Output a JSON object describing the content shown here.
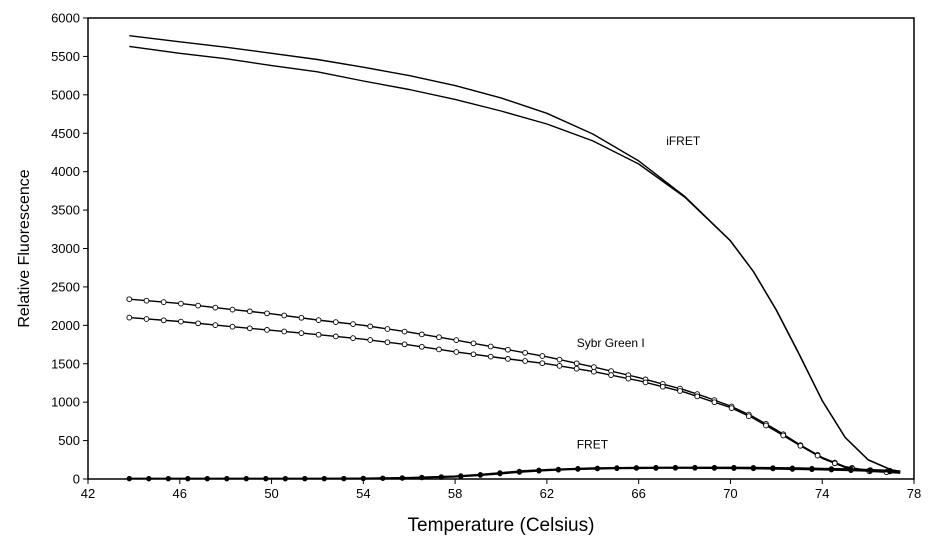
{
  "chart_data": {
    "type": "line",
    "title": "",
    "xlabel": "Temperature (Celsius)",
    "ylabel": "Relative Fluorescence",
    "xlim": [
      42,
      78
    ],
    "ylim": [
      0,
      6000
    ],
    "xticks": [
      42,
      46,
      50,
      54,
      58,
      62,
      66,
      70,
      74,
      78
    ],
    "yticks": [
      0,
      500,
      1000,
      1500,
      2000,
      2500,
      3000,
      3500,
      4000,
      4500,
      5000,
      5500,
      6000
    ],
    "grid": false,
    "legend": "none",
    "annotations": [
      {
        "text": "iFRET",
        "x": 67.2,
        "y": 4350
      },
      {
        "text": "Sybr Green I",
        "x": 63.3,
        "y": 1720
      },
      {
        "text": "FRET",
        "x": 63.3,
        "y": 400
      }
    ],
    "series": [
      {
        "group": "iFRET",
        "marker": "none",
        "x": [
          43.8,
          46,
          48,
          50,
          52,
          54,
          56,
          58,
          60,
          62,
          64,
          66,
          68,
          70,
          71,
          72,
          73,
          74,
          75,
          76,
          77,
          77.4
        ],
        "values": [
          5770,
          5690,
          5620,
          5540,
          5460,
          5360,
          5250,
          5120,
          4960,
          4760,
          4490,
          4140,
          3680,
          3100,
          2700,
          2200,
          1620,
          1020,
          540,
          250,
          120,
          100
        ]
      },
      {
        "group": "iFRET",
        "marker": "none",
        "x": [
          43.8,
          46,
          48,
          50,
          52,
          54,
          56,
          58,
          60,
          62,
          64,
          66,
          68,
          70,
          71,
          72,
          73,
          74,
          75,
          76,
          77,
          77.4
        ],
        "values": [
          5630,
          5540,
          5470,
          5380,
          5300,
          5180,
          5070,
          4940,
          4790,
          4620,
          4400,
          4100,
          3670,
          3100,
          2700,
          2200,
          1620,
          1020,
          540,
          250,
          120,
          100
        ]
      },
      {
        "group": "Sybr Green I",
        "marker": "open-circle",
        "x": [
          43.8,
          46,
          48,
          50,
          52,
          54,
          56,
          58,
          60,
          62,
          64,
          66,
          68,
          69,
          70,
          71,
          72,
          73,
          74,
          75,
          76,
          77,
          77.4
        ],
        "values": [
          2340,
          2285,
          2215,
          2150,
          2070,
          2000,
          1910,
          1810,
          1700,
          1590,
          1460,
          1320,
          1160,
          1060,
          950,
          810,
          640,
          450,
          280,
          160,
          110,
          90,
          80
        ]
      },
      {
        "group": "Sybr Green I",
        "marker": "open-circle",
        "x": [
          43.8,
          46,
          48,
          50,
          52,
          54,
          56,
          58,
          60,
          62,
          64,
          66,
          68,
          69,
          70,
          71,
          72,
          73,
          74,
          75,
          76,
          77,
          77.4
        ],
        "values": [
          2100,
          2050,
          1990,
          1935,
          1880,
          1820,
          1745,
          1655,
          1575,
          1500,
          1400,
          1280,
          1130,
          1030,
          930,
          790,
          620,
          440,
          270,
          150,
          100,
          85,
          75
        ]
      },
      {
        "group": "FRET",
        "marker": "filled-circle",
        "x": [
          43.8,
          46,
          48,
          50,
          52,
          54,
          56,
          58,
          59,
          60,
          61,
          62,
          63,
          64,
          65,
          66,
          67,
          68,
          69,
          70,
          71,
          72,
          73,
          74,
          75,
          76,
          77,
          77.4
        ],
        "values": [
          5,
          5,
          5,
          5,
          5,
          8,
          15,
          35,
          55,
          80,
          105,
          120,
          132,
          140,
          145,
          148,
          150,
          150,
          150,
          150,
          148,
          145,
          140,
          135,
          130,
          120,
          110,
          100
        ]
      },
      {
        "group": "FRET",
        "marker": "filled-circle",
        "x": [
          43.8,
          46,
          48,
          50,
          52,
          54,
          56,
          58,
          59,
          60,
          61,
          62,
          63,
          64,
          65,
          66,
          67,
          68,
          69,
          70,
          71,
          72,
          73,
          74,
          75,
          76,
          77,
          77.4
        ],
        "values": [
          5,
          5,
          5,
          5,
          5,
          6,
          12,
          30,
          48,
          70,
          95,
          112,
          125,
          133,
          138,
          141,
          143,
          143,
          142,
          140,
          137,
          133,
          128,
          122,
          115,
          105,
          95,
          90
        ]
      }
    ]
  }
}
